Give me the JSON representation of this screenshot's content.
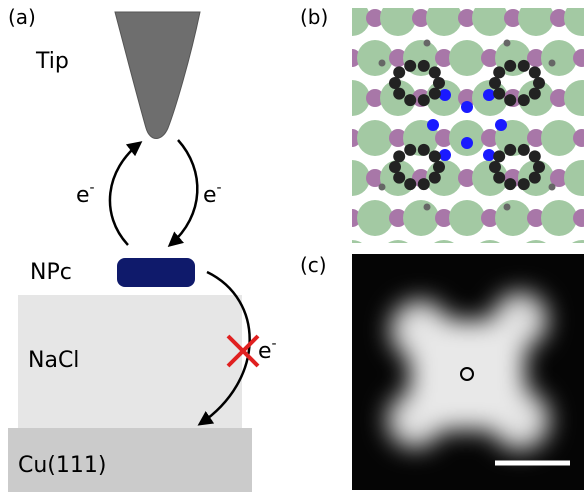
{
  "panel_a": {
    "label": "(a)",
    "tip": "Tip",
    "molecule": "NPc",
    "substrate_insulator": "NaCl",
    "substrate_metal": "Cu(111)",
    "electron_left": {
      "base": "e",
      "sup": "-"
    },
    "electron_right": {
      "base": "e",
      "sup": "-"
    },
    "electron_blocked": {
      "base": "e",
      "sup": "-"
    }
  },
  "panel_b": {
    "label": "(b)"
  },
  "panel_c": {
    "label": "(c)"
  }
}
